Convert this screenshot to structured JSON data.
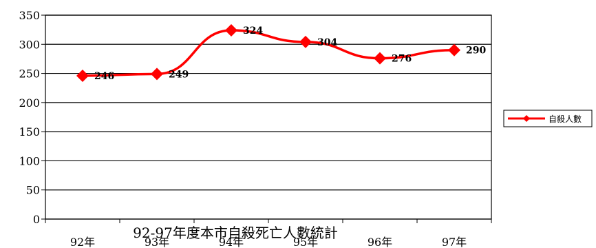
{
  "chart_data": {
    "type": "line",
    "title": "92-97年度本市自殺死亡人數統計",
    "categories": [
      "92年",
      "93年",
      "94年",
      "95年",
      "96年",
      "97年"
    ],
    "series": [
      {
        "name": "自殺人數",
        "values": [
          246,
          249,
          324,
          304,
          276,
          290
        ],
        "color": "#ff0000"
      }
    ],
    "ylim": [
      0,
      350
    ],
    "yticks": [
      0,
      50,
      100,
      150,
      200,
      250,
      300,
      350
    ],
    "grid": true,
    "legend": "right"
  }
}
